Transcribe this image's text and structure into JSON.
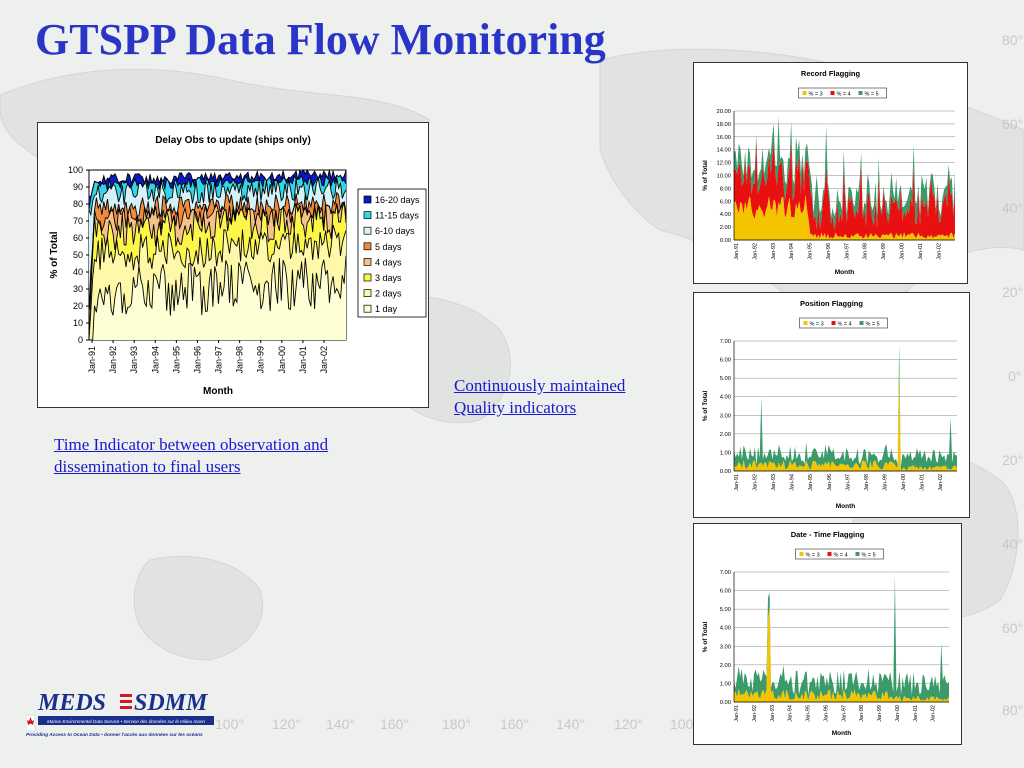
{
  "page_title": "GTSPP Data Flow Monitoring",
  "captions": {
    "time_indicator": "Time Indicator between observation and dissemination to final users",
    "quality_indicators": "Continuously maintained Quality indicators"
  },
  "logo": {
    "name": "MEDS",
    "name2": "SDMM",
    "line1": "Marine Environmental Data Service • Service des données sur le milieu marin",
    "line2": "Providing Access to Ocean Data • donner l'accès aux données sur les océans"
  },
  "map_labels": {
    "longitudes": [
      "100°",
      "120°",
      "140°",
      "160°",
      "180°",
      "160°",
      "140°",
      "120°",
      "100"
    ],
    "latitudes": [
      "80°",
      "60°",
      "40°",
      "20°",
      "0°",
      "20°",
      "40°",
      "60°",
      "80°"
    ]
  },
  "chart_data": [
    {
      "id": "delay",
      "type": "area",
      "title": "Delay Obs to update (ships only)",
      "xlabel": "Month",
      "ylabel": "% of Total",
      "ylim": [
        0,
        100
      ],
      "yticks": [
        0,
        10,
        20,
        30,
        40,
        50,
        60,
        70,
        80,
        90,
        100
      ],
      "x_ticks": [
        "Jan-91",
        "Jan-92",
        "Jan-93",
        "Jan-94",
        "Jan-95",
        "Jan-96",
        "Jan-97",
        "Jan-98",
        "Jan-99",
        "Jan-00",
        "Jan-01",
        "Jan-02"
      ],
      "stacked": true,
      "cumulative": true,
      "legend_position": "right",
      "series_approx_mean": [
        {
          "name": "1 day",
          "mean": 27
        },
        {
          "name": "2 days",
          "mean": 50
        },
        {
          "name": "3 days",
          "mean": 63
        },
        {
          "name": "4 days",
          "mean": 71
        },
        {
          "name": "5 days",
          "mean": 77
        },
        {
          "name": "6-10 days",
          "mean": 86
        },
        {
          "name": "11-15 days",
          "mean": 91
        },
        {
          "name": "16-20 days",
          "mean": 94
        }
      ],
      "legend": [
        {
          "name": "16-20 days",
          "color": "#0a1ac4"
        },
        {
          "name": "11-15 days",
          "color": "#33d6e8"
        },
        {
          "name": "6-10 days",
          "color": "#d4f2f8"
        },
        {
          "name": "5 days",
          "color": "#f08a3c"
        },
        {
          "name": "4 days",
          "color": "#f7c08a"
        },
        {
          "name": "3 days",
          "color": "#fdf64a"
        },
        {
          "name": "2 days",
          "color": "#fdf9a8"
        },
        {
          "name": "1 day",
          "color": "#ffffd6"
        }
      ]
    },
    {
      "id": "record",
      "type": "area",
      "title": "Record Flagging",
      "xlabel": "Month",
      "ylabel": "% of Total",
      "ylim": [
        0,
        20
      ],
      "yticks": [
        "0.00",
        "2.00",
        "4.00",
        "6.00",
        "8.00",
        "10.00",
        "12.00",
        "14.00",
        "16.00",
        "18.00",
        "20.00"
      ],
      "x_ticks": [
        "Jan-91",
        "Jan-92",
        "Jan-93",
        "Jan-94",
        "Jan-95",
        "Jan-96",
        "Jan-97",
        "Jan-98",
        "Jan-99",
        "Jan-00",
        "Jan-01",
        "Jan-02"
      ],
      "stacked": true,
      "legend_position": "top",
      "legend": [
        {
          "name": "% = 3",
          "color": "#f5c400"
        },
        {
          "name": "% = 4",
          "color": "#e81010"
        },
        {
          "name": "% = 5",
          "color": "#3a9a6a"
        }
      ],
      "series_approx_mean": [
        {
          "name": "% = 3",
          "mean": 2.5
        },
        {
          "name": "% = 4",
          "mean": 4.5
        },
        {
          "name": "% = 5",
          "mean": 2.5
        }
      ]
    },
    {
      "id": "position",
      "type": "area",
      "title": "Position Flagging",
      "xlabel": "Month",
      "ylabel": "% of Total",
      "ylim": [
        0,
        7
      ],
      "yticks": [
        "0.00",
        "1.00",
        "2.00",
        "3.00",
        "4.00",
        "5.00",
        "6.00",
        "7.00"
      ],
      "x_ticks": [
        "Jan-91",
        "Jan-92",
        "Jan-93",
        "Jan-94",
        "Jan-95",
        "Jan-96",
        "Jan-97",
        "Jan-98",
        "Jan-99",
        "Jan-00",
        "Jan-01",
        "Jan-02"
      ],
      "stacked": true,
      "legend_position": "top",
      "legend": [
        {
          "name": "% = 3",
          "color": "#f5c400"
        },
        {
          "name": "% = 4",
          "color": "#e81010"
        },
        {
          "name": "% = 5",
          "color": "#3a9a6a"
        }
      ],
      "series_approx_mean": [
        {
          "name": "% = 3",
          "mean": 0.3
        },
        {
          "name": "% = 4",
          "mean": 0.0
        },
        {
          "name": "% = 5",
          "mean": 0.5
        }
      ]
    },
    {
      "id": "datetime",
      "type": "area",
      "title": "Date - Time Flagging",
      "xlabel": "Month",
      "ylabel": "% of Total",
      "ylim": [
        0,
        7
      ],
      "yticks": [
        "0.00",
        "1.00",
        "2.00",
        "3.00",
        "4.00",
        "5.00",
        "6.00",
        "7.00"
      ],
      "x_ticks": [
        "Jan-91",
        "Jan-92",
        "Jan-93",
        "Jan-94",
        "Jan-95",
        "Jan-96",
        "Jan-97",
        "Jan-98",
        "Jan-99",
        "Jan-00",
        "Jan-01",
        "Jan-02"
      ],
      "stacked": true,
      "legend_position": "top",
      "legend": [
        {
          "name": "% = 3",
          "color": "#f5c400"
        },
        {
          "name": "% = 4",
          "color": "#e81010"
        },
        {
          "name": "% = 5",
          "color": "#3a9a6a"
        }
      ],
      "series_approx_mean": [
        {
          "name": "% = 3",
          "mean": 0.35
        },
        {
          "name": "% = 4",
          "mean": 0.0
        },
        {
          "name": "% = 5",
          "mean": 0.7
        }
      ]
    }
  ]
}
